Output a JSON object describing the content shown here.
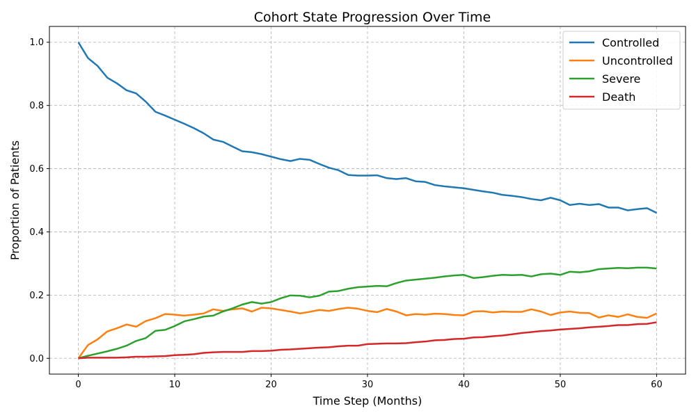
{
  "chart_data": {
    "type": "line",
    "title": "Cohort State Progression Over Time",
    "xlabel": "Time Step (Months)",
    "ylabel": "Proportion of Patients",
    "xlim": [
      -3,
      63
    ],
    "ylim": [
      -0.05,
      1.05
    ],
    "xticks": [
      0,
      10,
      20,
      30,
      40,
      50,
      60
    ],
    "xtick_labels": [
      "0",
      "10",
      "20",
      "30",
      "40",
      "50",
      "60"
    ],
    "yticks": [
      0.0,
      0.2,
      0.4,
      0.6,
      0.8,
      1.0
    ],
    "ytick_labels": [
      "0.0",
      "0.2",
      "0.4",
      "0.6",
      "0.8",
      "1.0"
    ],
    "grid": true,
    "legend_position": "top-right",
    "x": [
      0,
      1,
      2,
      3,
      4,
      5,
      6,
      7,
      8,
      9,
      10,
      11,
      12,
      13,
      14,
      15,
      16,
      17,
      18,
      19,
      20,
      21,
      22,
      23,
      24,
      25,
      26,
      27,
      28,
      29,
      30,
      31,
      32,
      33,
      34,
      35,
      36,
      37,
      38,
      39,
      40,
      41,
      42,
      43,
      44,
      45,
      46,
      47,
      48,
      49,
      50,
      51,
      52,
      53,
      54,
      55,
      56,
      57,
      58,
      59,
      60
    ],
    "series": [
      {
        "name": "Controlled",
        "color": "#1f77b4",
        "values": [
          1.0,
          0.95,
          0.925,
          0.888,
          0.87,
          0.848,
          0.838,
          0.812,
          0.78,
          0.768,
          0.755,
          0.742,
          0.728,
          0.712,
          0.692,
          0.685,
          0.67,
          0.655,
          0.652,
          0.646,
          0.638,
          0.63,
          0.624,
          0.631,
          0.628,
          0.615,
          0.603,
          0.595,
          0.58,
          0.578,
          0.578,
          0.579,
          0.57,
          0.567,
          0.57,
          0.56,
          0.558,
          0.548,
          0.544,
          0.541,
          0.538,
          0.533,
          0.528,
          0.524,
          0.517,
          0.514,
          0.51,
          0.504,
          0.5,
          0.508,
          0.5,
          0.485,
          0.489,
          0.485,
          0.488,
          0.477,
          0.477,
          0.468,
          0.472,
          0.475,
          0.46
        ]
      },
      {
        "name": "Uncontrolled",
        "color": "#ff7f0e",
        "values": [
          0.0,
          0.042,
          0.06,
          0.085,
          0.095,
          0.107,
          0.1,
          0.118,
          0.127,
          0.14,
          0.138,
          0.135,
          0.138,
          0.142,
          0.155,
          0.15,
          0.155,
          0.158,
          0.148,
          0.16,
          0.158,
          0.153,
          0.148,
          0.142,
          0.147,
          0.153,
          0.15,
          0.156,
          0.16,
          0.157,
          0.15,
          0.146,
          0.156,
          0.148,
          0.136,
          0.14,
          0.138,
          0.141,
          0.14,
          0.137,
          0.136,
          0.148,
          0.149,
          0.145,
          0.148,
          0.147,
          0.147,
          0.155,
          0.148,
          0.137,
          0.145,
          0.148,
          0.144,
          0.143,
          0.129,
          0.136,
          0.131,
          0.139,
          0.131,
          0.128,
          0.142
        ]
      },
      {
        "name": "Severe",
        "color": "#2ca02c",
        "values": [
          0.0,
          0.008,
          0.015,
          0.022,
          0.03,
          0.04,
          0.055,
          0.064,
          0.087,
          0.09,
          0.102,
          0.117,
          0.124,
          0.132,
          0.135,
          0.148,
          0.158,
          0.17,
          0.178,
          0.173,
          0.178,
          0.19,
          0.199,
          0.198,
          0.193,
          0.198,
          0.211,
          0.213,
          0.22,
          0.225,
          0.227,
          0.229,
          0.228,
          0.238,
          0.246,
          0.249,
          0.252,
          0.255,
          0.259,
          0.262,
          0.264,
          0.254,
          0.257,
          0.261,
          0.264,
          0.263,
          0.264,
          0.259,
          0.266,
          0.268,
          0.264,
          0.274,
          0.272,
          0.275,
          0.282,
          0.284,
          0.286,
          0.285,
          0.287,
          0.287,
          0.284
        ]
      },
      {
        "name": "Death",
        "color": "#d62728",
        "values": [
          0.0,
          0.002,
          0.002,
          0.002,
          0.002,
          0.003,
          0.005,
          0.005,
          0.006,
          0.007,
          0.01,
          0.011,
          0.013,
          0.017,
          0.019,
          0.02,
          0.02,
          0.02,
          0.023,
          0.023,
          0.024,
          0.027,
          0.028,
          0.03,
          0.032,
          0.034,
          0.035,
          0.038,
          0.04,
          0.04,
          0.045,
          0.046,
          0.047,
          0.047,
          0.048,
          0.051,
          0.053,
          0.057,
          0.058,
          0.061,
          0.062,
          0.066,
          0.067,
          0.07,
          0.072,
          0.076,
          0.08,
          0.083,
          0.086,
          0.088,
          0.091,
          0.093,
          0.095,
          0.098,
          0.1,
          0.102,
          0.105,
          0.105,
          0.108,
          0.109,
          0.114
        ]
      }
    ]
  }
}
